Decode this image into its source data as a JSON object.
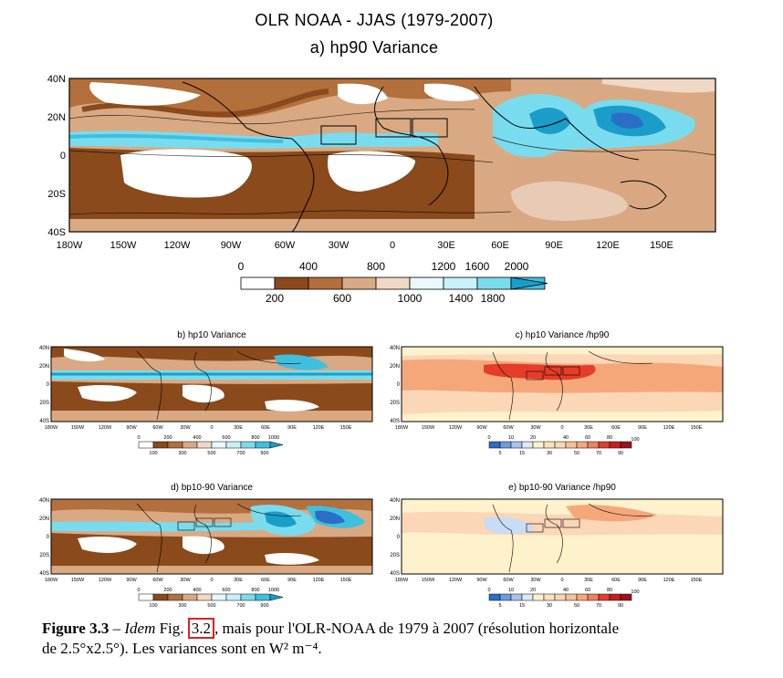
{
  "main": {
    "title": "OLR NOAA - JJAS (1979-2007)",
    "subtitle": "a) hp90 Variance",
    "lat_labels": [
      "40N",
      "20N",
      "0",
      "20S",
      "40S"
    ],
    "lon_labels": [
      "180W",
      "150W",
      "120W",
      "90W",
      "60W",
      "30W",
      "0",
      "30E",
      "60E",
      "90E",
      "120E",
      "150E"
    ],
    "colorbar_top": [
      "0",
      "400",
      "800",
      "1200",
      "1600",
      "2000"
    ],
    "colorbar_bottom": [
      "200",
      "600",
      "1000",
      "1400",
      "1800"
    ]
  },
  "panels": {
    "b": {
      "title": "b) hp10 Variance"
    },
    "c": {
      "title": "c) hp10 Variance /hp90"
    },
    "d": {
      "title": "d) bp10-90 Variance"
    },
    "e": {
      "title": "e) bp10-90 Variance /hp90"
    }
  },
  "small_lat_labels": [
    "40N",
    "20N",
    "0",
    "20S",
    "40S"
  ],
  "small_lon_labels": [
    "180W",
    "150W",
    "120W",
    "90W",
    "60W",
    "30W",
    "0",
    "30E",
    "60E",
    "90E",
    "120E",
    "150E"
  ],
  "cb_var_top": [
    "0",
    "200",
    "400",
    "600",
    "800",
    "1000"
  ],
  "cb_var_bottom": [
    "100",
    "300",
    "500",
    "700",
    "900"
  ],
  "cb_ratio_top": [
    "0",
    "10",
    "20",
    "40",
    "60",
    "80",
    "100"
  ],
  "cb_ratio_bottom": [
    "5",
    "15",
    "30",
    "50",
    "70",
    "90"
  ],
  "caption": {
    "figure": "Figure 3.3",
    "dash": " – ",
    "idem": "Idem",
    "fig_word": " Fig. ",
    "ref": "3.2",
    "rest_1": ", mais pour l'OLR-NOAA de 1979 à 2007 (résolution horizontale",
    "rest_2": "de 2.5°x2.5°). Les variances sont en W² m⁻⁴."
  },
  "colors": {
    "brown_dark": "#8a4a1c",
    "brown": "#b36f3c",
    "tan": "#d9a983",
    "light_tan": "#f0d8c6",
    "light_cyan": "#c7f1f8",
    "cyan": "#79dcee",
    "cyan_mid": "#3fbfe0",
    "cyan_dark": "#1a9dc9",
    "blue": "#2a6ec8",
    "red": "#e53d2a",
    "orange": "#f6a77a",
    "peach": "#fbd6b7",
    "cream": "#fdf2cc"
  }
}
